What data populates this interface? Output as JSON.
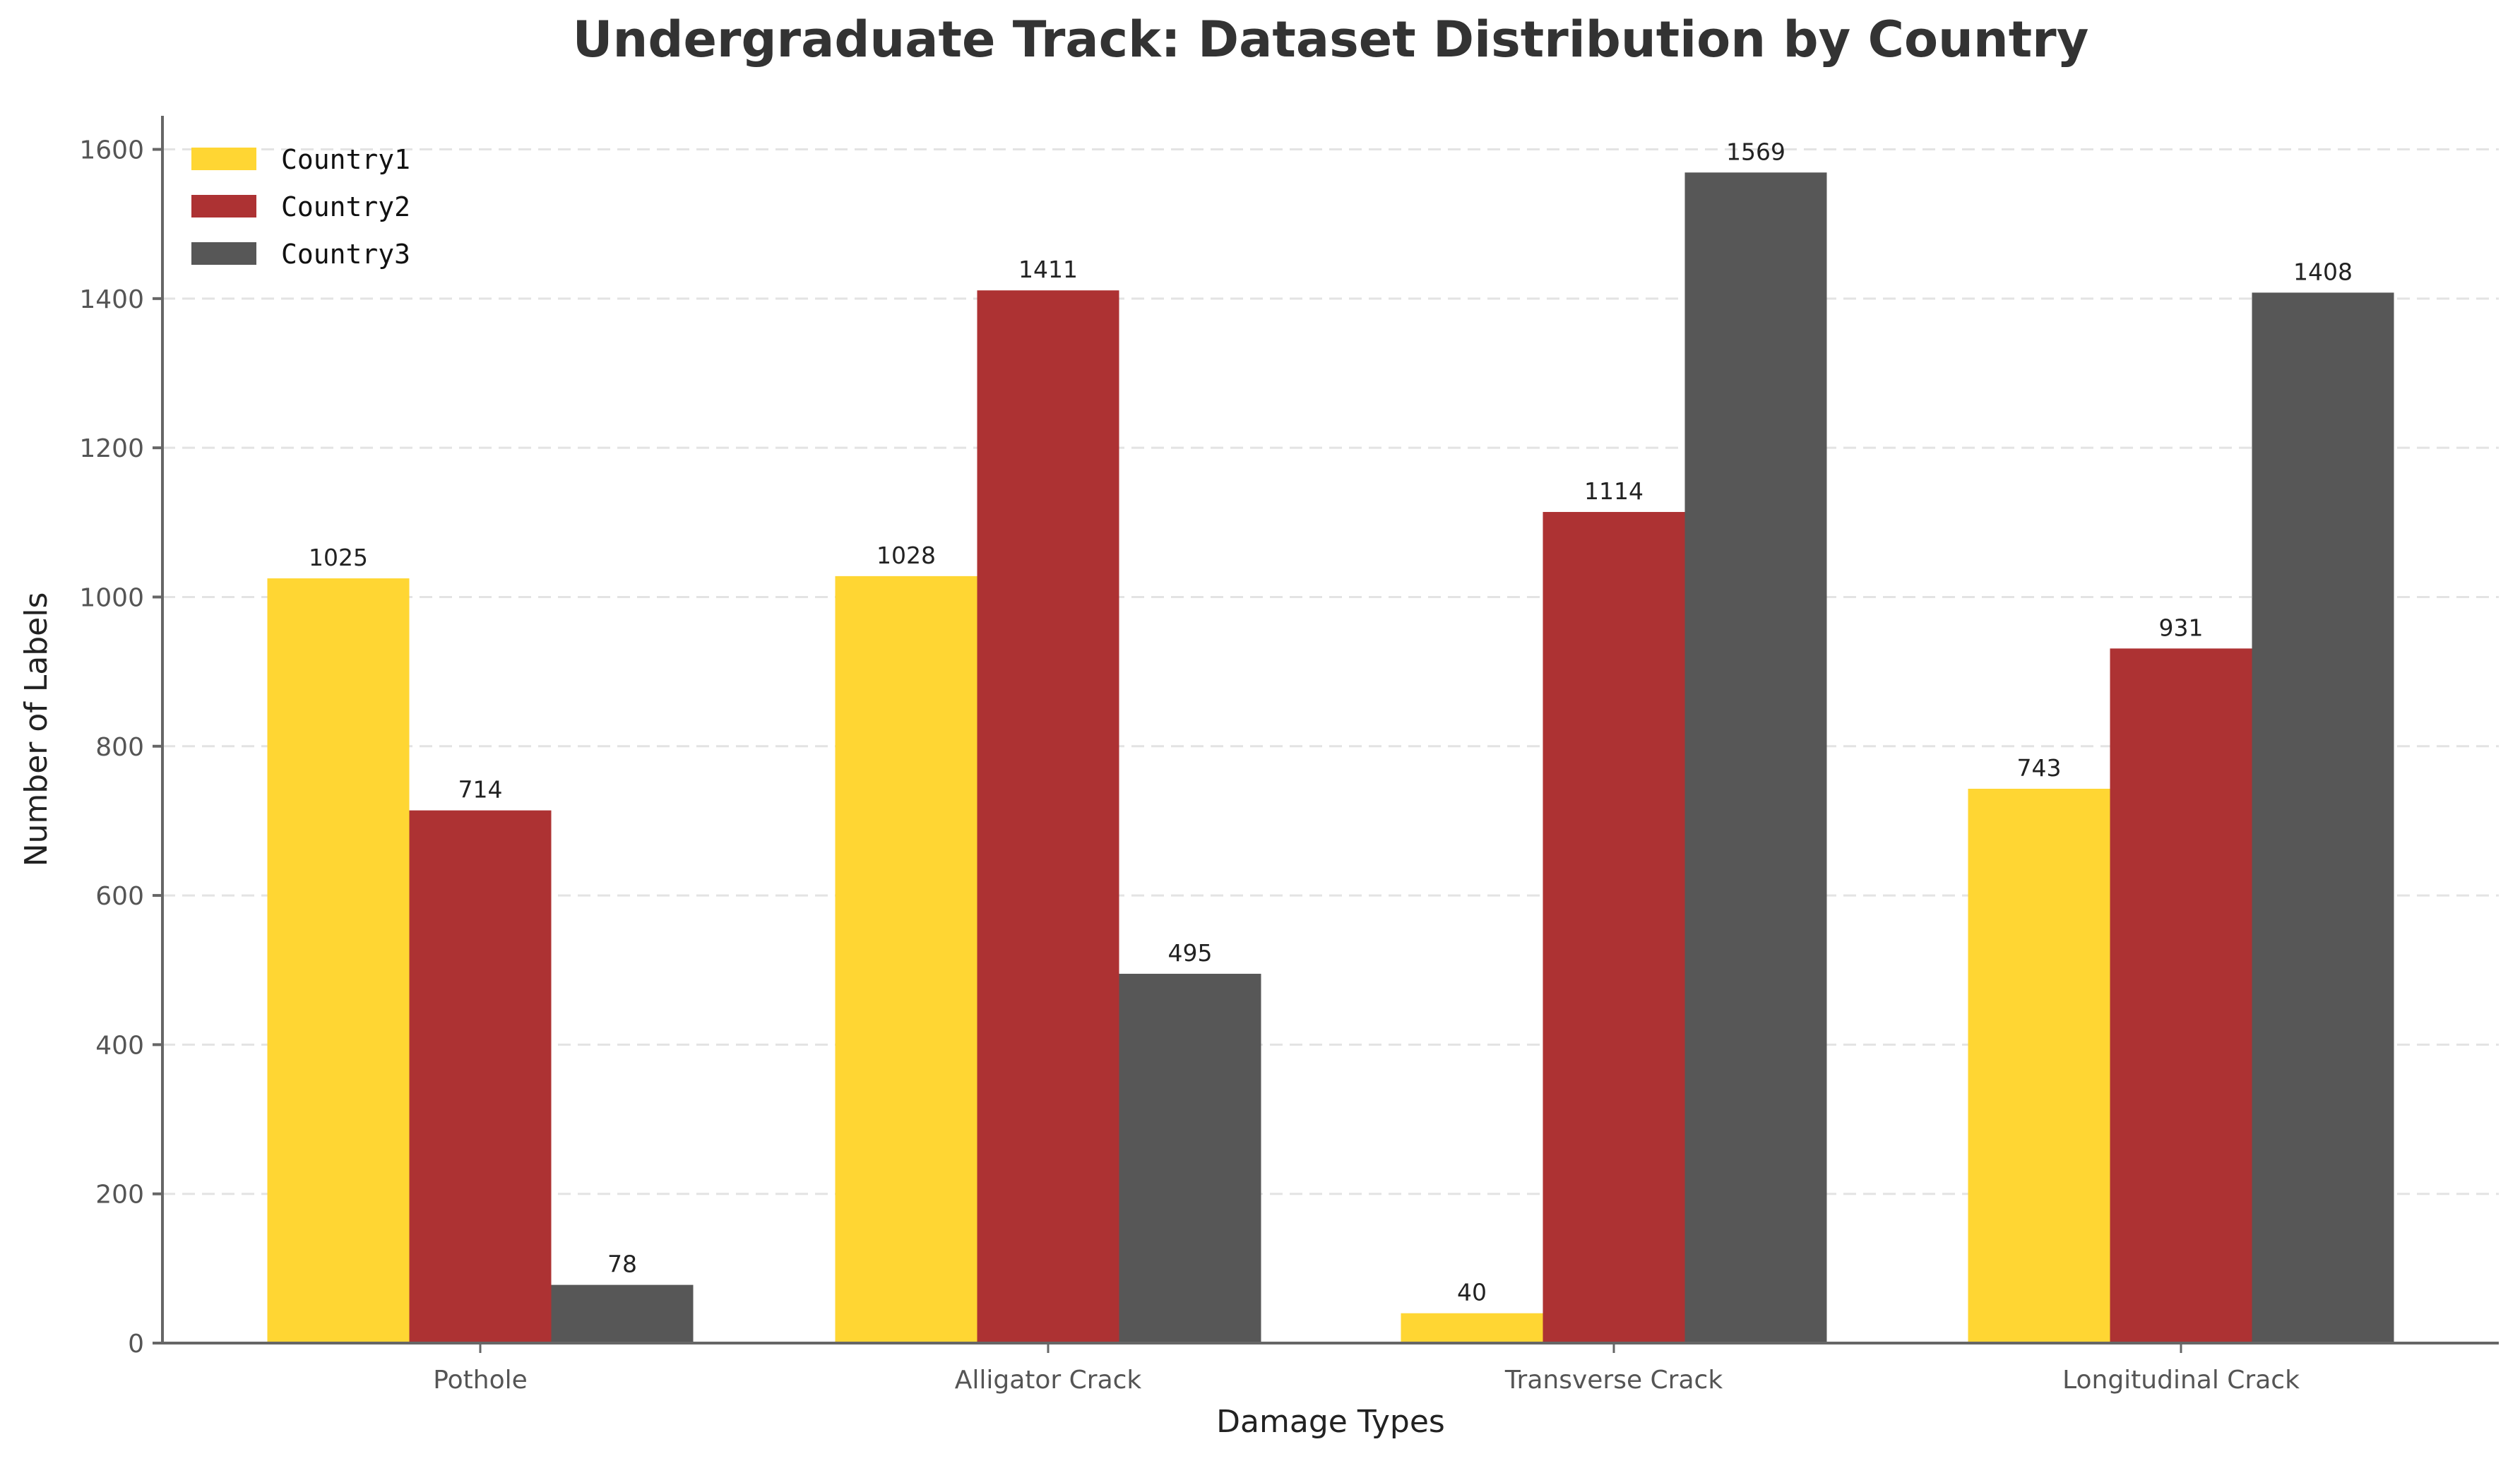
{
  "chart_data": {
    "type": "bar",
    "title": "Undergraduate Track: Dataset Distribution by Country",
    "xlabel": "Damage Types",
    "ylabel": "Number of Labels",
    "categories": [
      "Pothole",
      "Alligator Crack",
      "Transverse Crack",
      "Longitudinal Crack"
    ],
    "series": [
      {
        "name": "Country1",
        "color": "#FFD633",
        "values": [
          1025,
          1028,
          40,
          743
        ]
      },
      {
        "name": "Country2",
        "color": "#AD3233",
        "values": [
          714,
          1411,
          1114,
          931
        ]
      },
      {
        "name": "Country3",
        "color": "#575757",
        "values": [
          78,
          495,
          1569,
          1408
        ]
      }
    ],
    "ylim": [
      0,
      1645
    ],
    "yticks": [
      0,
      200,
      400,
      600,
      800,
      1000,
      1200,
      1400,
      1600
    ],
    "grid": true,
    "legend_position": "top-left"
  }
}
